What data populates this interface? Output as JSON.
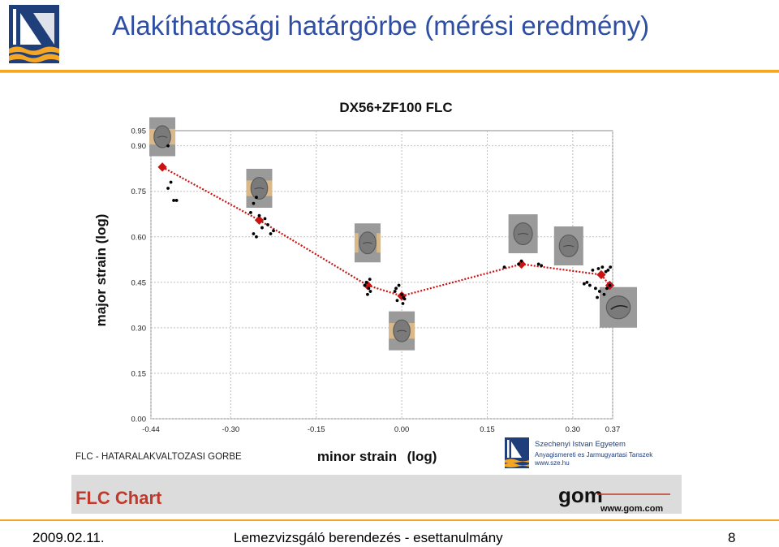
{
  "slide": {
    "title": "Alakíthatósági határgörbe (mérési eredmény)",
    "footer_date": "2009.02.11.",
    "footer_center": "Lemezvizsgáló berendezés - esettanulmány",
    "page_number": "8"
  },
  "figure": {
    "caption_left": "FLC - HATARALAKVALTOZASI GORBE",
    "university_name": "Szechenyi Istvan Egyetem",
    "department": "Anyagismereti es Jarmugyartasi Tanszek",
    "university_url": "www.sze.hu",
    "banner_title": "FLC Chart",
    "gom_logo": "gom",
    "gom_url": "www.gom.com"
  },
  "colors": {
    "accent": "#f5a623",
    "title_blue": "#2e4ea3",
    "flc_red": "#cc1111",
    "banner_red": "#c0392b"
  },
  "chart_data": {
    "type": "scatter",
    "title": "DX56+ZF100 FLC",
    "xlabel": "minor strain",
    "xlabel_suffix": "(log)",
    "ylabel": "major strain (log)",
    "xlim": [
      -0.44,
      0.37
    ],
    "ylim": [
      0.0,
      0.95
    ],
    "x_ticks": [
      -0.44,
      -0.3,
      -0.15,
      0.0,
      0.15,
      0.3,
      0.37
    ],
    "x_tick_labels": [
      "-0.44",
      "-0.30",
      "-0.15",
      "0.00",
      "0.15",
      "0.30",
      "0.37"
    ],
    "y_ticks": [
      0.0,
      0.15,
      0.3,
      0.45,
      0.6,
      0.75,
      0.9,
      0.95
    ],
    "y_tick_labels": [
      "0.00",
      "0.15",
      "0.30",
      "0.45",
      "0.60",
      "0.75",
      "0.90",
      "0.95"
    ],
    "grid": true,
    "flc_curve": {
      "x": [
        -0.42,
        -0.25,
        -0.06,
        0.0,
        0.21,
        0.35,
        0.365
      ],
      "y": [
        0.83,
        0.655,
        0.44,
        0.405,
        0.51,
        0.475,
        0.44
      ]
    },
    "measured_points": {
      "x": [
        -0.41,
        -0.405,
        -0.41,
        -0.4,
        -0.395,
        -0.265,
        -0.26,
        -0.255,
        -0.25,
        -0.26,
        -0.245,
        -0.24,
        -0.235,
        -0.23,
        -0.225,
        -0.255,
        -0.062,
        -0.058,
        -0.055,
        -0.06,
        -0.065,
        -0.056,
        -0.01,
        -0.005,
        0.0,
        0.003,
        -0.008,
        0.002,
        -0.012,
        0.005,
        0.18,
        0.205,
        0.21,
        0.24,
        0.245,
        0.32,
        0.325,
        0.33,
        0.335,
        0.345,
        0.352,
        0.358,
        0.362,
        0.366,
        0.34,
        0.347,
        0.355,
        0.36,
        0.365,
        0.343
      ],
      "y": [
        0.9,
        0.78,
        0.76,
        0.72,
        0.72,
        0.68,
        0.71,
        0.73,
        0.67,
        0.61,
        0.63,
        0.66,
        0.64,
        0.61,
        0.62,
        0.6,
        0.45,
        0.43,
        0.42,
        0.41,
        0.44,
        0.46,
        0.43,
        0.44,
        0.41,
        0.4,
        0.39,
        0.38,
        0.42,
        0.395,
        0.5,
        0.51,
        0.52,
        0.51,
        0.505,
        0.445,
        0.45,
        0.44,
        0.49,
        0.495,
        0.5,
        0.485,
        0.49,
        0.5,
        0.43,
        0.42,
        0.41,
        0.43,
        0.44,
        0.4
      ]
    },
    "specimens": [
      {
        "name": "specimen-1",
        "x": -0.42,
        "y": 0.93,
        "style": "narrow"
      },
      {
        "name": "specimen-2",
        "x": -0.25,
        "y": 0.76,
        "style": "narrow"
      },
      {
        "name": "specimen-3",
        "x": -0.06,
        "y": 0.58,
        "style": "medium"
      },
      {
        "name": "specimen-4",
        "x": 0.0,
        "y": 0.29,
        "style": "narrow-dark"
      },
      {
        "name": "specimen-5",
        "x": 0.21,
        "y": 0.61,
        "style": "full"
      },
      {
        "name": "specimen-6",
        "x": 0.29,
        "y": 0.57,
        "style": "full"
      },
      {
        "name": "specimen-7",
        "x": 0.37,
        "y": 0.37,
        "style": "cracked"
      }
    ]
  }
}
